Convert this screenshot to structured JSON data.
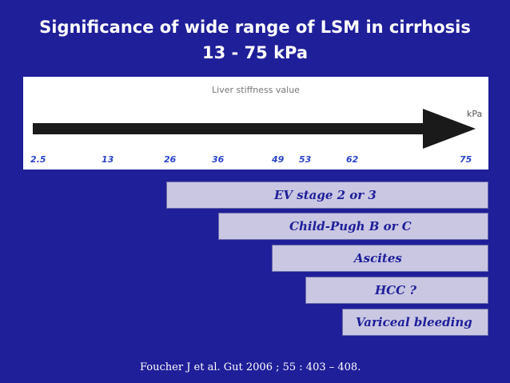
{
  "title": {
    "line1": "Significance of wide range of LSM in cirrhosis",
    "line2": "13 - 75 kPa"
  },
  "scale": {
    "label": "Liver stiffness value",
    "unit": "kPa",
    "ticks": [
      "2.5",
      "13",
      "26",
      "36",
      "49",
      "53",
      "62",
      "75"
    ]
  },
  "bars": [
    {
      "label": "EV stage 2 or 3"
    },
    {
      "label": "Child-Pugh B or C"
    },
    {
      "label": "Ascites"
    },
    {
      "label": "HCC ?"
    },
    {
      "label": "Variceal bleeding"
    }
  ],
  "citation": "Foucher J  et al. Gut 2006 ; 55 : 403 – 408.",
  "colors": {
    "background": "#1f1f99",
    "bar_fill": "#c9c7e2",
    "bar_text": "#1f1f99",
    "tick_text": "#2b44c9"
  }
}
